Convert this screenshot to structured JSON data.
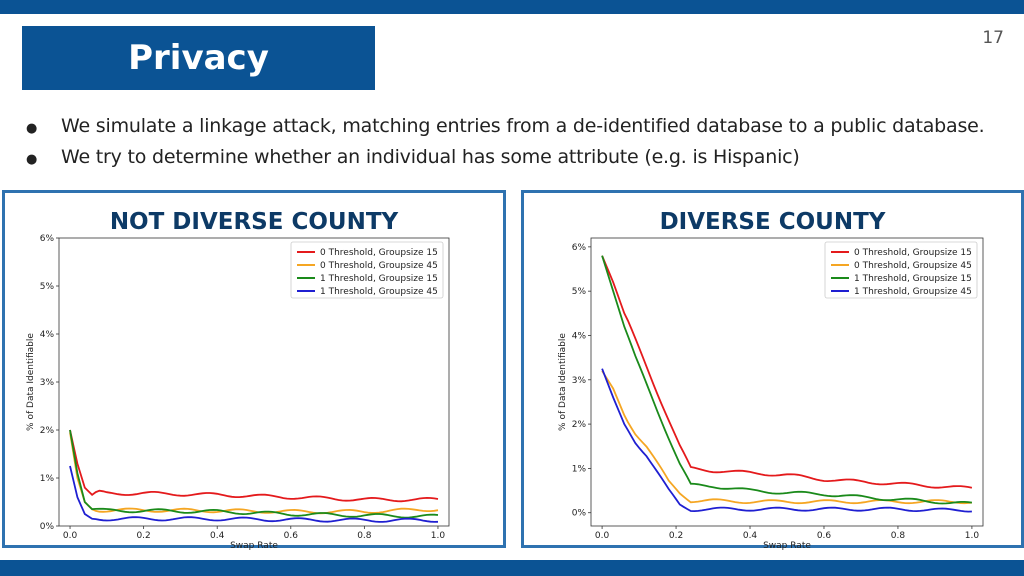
{
  "slide": {
    "page_number": "17",
    "title": "Privacy",
    "bullets": [
      "We simulate a linkage attack, matching entries from a de-identified database to a public database.",
      "We try to determine whether an individual has some attribute (e.g. is Hispanic)"
    ]
  },
  "colors": {
    "brand": "#0b5394",
    "panel_border": "#2e72b0",
    "panel_title": "#0d3a66",
    "series": [
      "#e41a1c",
      "#f5a623",
      "#1a8a1a",
      "#1f1fd1"
    ]
  },
  "chart_data": [
    {
      "type": "line",
      "title": "NOT DIVERSE COUNTY",
      "xlabel": "Swap Rate",
      "ylabel": "% of Data Identifiable",
      "xlim": [
        -0.03,
        1.03
      ],
      "ylim": [
        0,
        6
      ],
      "xticks": [
        0.0,
        0.2,
        0.4,
        0.6,
        0.8,
        1.0
      ],
      "xtick_labels": [
        "0.0",
        "0.2",
        "0.4",
        "0.6",
        "0.8",
        "1.0"
      ],
      "yticks": [
        0,
        1,
        2,
        3,
        4,
        5,
        6
      ],
      "ytick_labels": [
        "0%",
        "1%",
        "2%",
        "3%",
        "4%",
        "5%",
        "6%"
      ],
      "legend_position": "top-right",
      "series": [
        {
          "name": "0 Threshold, Groupsize 15",
          "x": [
            0.0,
            0.02,
            0.04,
            0.06,
            0.08,
            0.1,
            0.2,
            0.4,
            0.6,
            0.8,
            1.0
          ],
          "y": [
            2.0,
            1.3,
            0.8,
            0.65,
            0.7,
            0.68,
            0.68,
            0.65,
            0.6,
            0.55,
            0.55
          ]
        },
        {
          "name": "0 Threshold, Groupsize 45",
          "x": [
            0.0,
            0.02,
            0.04,
            0.06,
            0.08,
            0.1,
            0.2,
            0.4,
            0.6,
            0.8,
            1.0
          ],
          "y": [
            1.95,
            1.0,
            0.5,
            0.35,
            0.33,
            0.33,
            0.33,
            0.32,
            0.3,
            0.3,
            0.35
          ]
        },
        {
          "name": "1 Threshold, Groupsize 15",
          "x": [
            0.0,
            0.02,
            0.04,
            0.06,
            0.08,
            0.1,
            0.2,
            0.4,
            0.6,
            0.8,
            1.0
          ],
          "y": [
            2.0,
            1.1,
            0.5,
            0.35,
            0.33,
            0.32,
            0.32,
            0.3,
            0.25,
            0.22,
            0.2
          ]
        },
        {
          "name": "1 Threshold, Groupsize 45",
          "x": [
            0.0,
            0.02,
            0.04,
            0.06,
            0.08,
            0.1,
            0.2,
            0.4,
            0.6,
            0.8,
            1.0
          ],
          "y": [
            1.25,
            0.6,
            0.25,
            0.15,
            0.15,
            0.15,
            0.15,
            0.15,
            0.13,
            0.12,
            0.12
          ]
        }
      ]
    },
    {
      "type": "line",
      "title": "DIVERSE COUNTY",
      "xlabel": "Swap Rate",
      "ylabel": "% of Data Identifiable",
      "xlim": [
        -0.03,
        1.03
      ],
      "ylim": [
        -0.3,
        6.2
      ],
      "xticks": [
        0.0,
        0.2,
        0.4,
        0.6,
        0.8,
        1.0
      ],
      "xtick_labels": [
        "0.0",
        "0.2",
        "0.4",
        "0.6",
        "0.8",
        "1.0"
      ],
      "yticks": [
        0,
        1,
        2,
        3,
        4,
        5,
        6
      ],
      "ytick_labels": [
        "0%",
        "1%",
        "2%",
        "3%",
        "4%",
        "5%",
        "6%"
      ],
      "legend_position": "top-right",
      "series": [
        {
          "name": "0 Threshold, Groupsize 15",
          "x": [
            0.0,
            0.03,
            0.06,
            0.09,
            0.12,
            0.15,
            0.18,
            0.21,
            0.24,
            0.3,
            0.4,
            0.5,
            0.6,
            0.7,
            0.8,
            0.9,
            1.0
          ],
          "y": [
            5.8,
            5.2,
            4.5,
            3.9,
            3.3,
            2.7,
            2.1,
            1.5,
            1.0,
            0.95,
            0.9,
            0.85,
            0.75,
            0.7,
            0.65,
            0.6,
            0.55
          ]
        },
        {
          "name": "0 Threshold, Groupsize 45",
          "x": [
            0.0,
            0.03,
            0.06,
            0.09,
            0.12,
            0.15,
            0.18,
            0.21,
            0.24,
            0.3,
            0.4,
            0.5,
            0.6,
            0.7,
            0.8,
            0.9,
            1.0
          ],
          "y": [
            3.2,
            2.8,
            2.2,
            1.8,
            1.5,
            1.1,
            0.7,
            0.45,
            0.27,
            0.27,
            0.25,
            0.25,
            0.25,
            0.25,
            0.25,
            0.25,
            0.25
          ]
        },
        {
          "name": "1 Threshold, Groupsize 15",
          "x": [
            0.0,
            0.03,
            0.06,
            0.09,
            0.12,
            0.15,
            0.18,
            0.21,
            0.24,
            0.3,
            0.4,
            0.5,
            0.6,
            0.7,
            0.8,
            0.9,
            1.0
          ],
          "y": [
            5.8,
            5.0,
            4.2,
            3.5,
            2.9,
            2.3,
            1.7,
            1.1,
            0.62,
            0.6,
            0.5,
            0.45,
            0.42,
            0.35,
            0.3,
            0.25,
            0.2
          ]
        },
        {
          "name": "1 Threshold, Groupsize 45",
          "x": [
            0.0,
            0.03,
            0.06,
            0.09,
            0.12,
            0.15,
            0.18,
            0.21,
            0.24,
            0.3,
            0.4,
            0.5,
            0.6,
            0.7,
            0.8,
            0.9,
            1.0
          ],
          "y": [
            3.25,
            2.6,
            2.0,
            1.6,
            1.3,
            0.9,
            0.5,
            0.18,
            0.07,
            0.08,
            0.08,
            0.08,
            0.08,
            0.08,
            0.08,
            0.06,
            0.06
          ]
        }
      ]
    }
  ]
}
